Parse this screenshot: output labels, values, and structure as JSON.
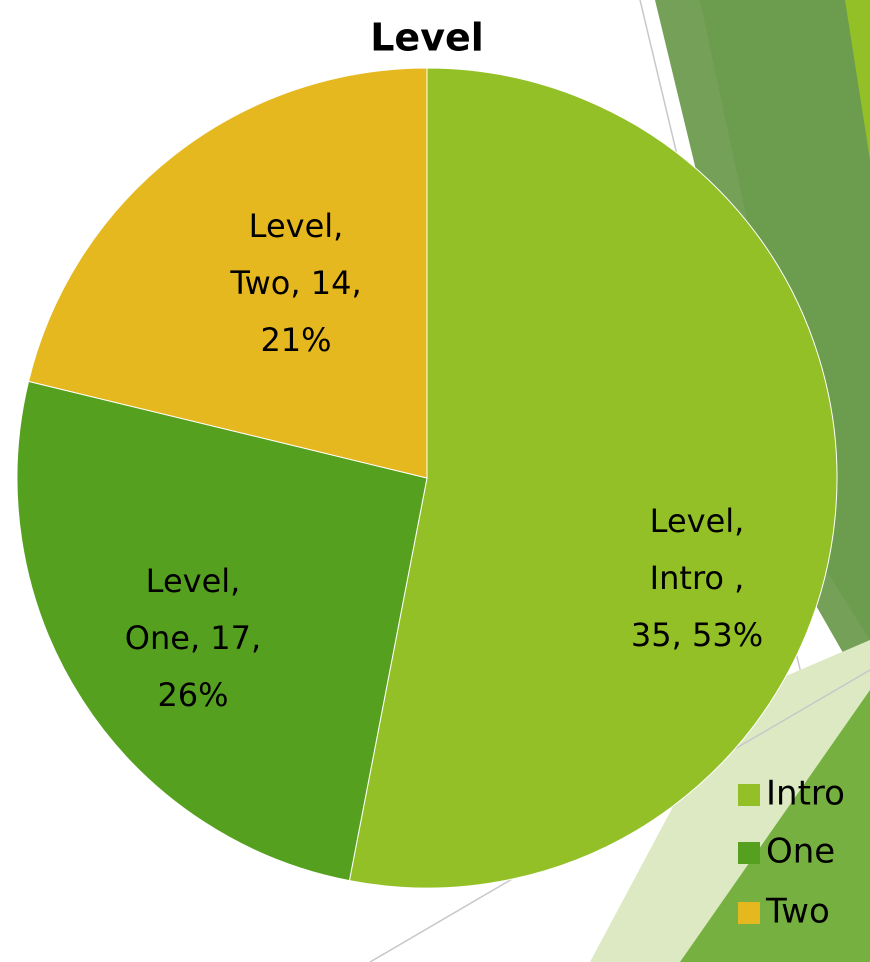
{
  "chart_data": {
    "type": "pie",
    "title": "Level",
    "categories": [
      "Intro",
      "One",
      "Two"
    ],
    "values": [
      35,
      17,
      14
    ],
    "value_labels": [
      [
        "Level,",
        "Intro  ,",
        "35, 53%"
      ],
      [
        "Level,",
        "One, 17,",
        "26%"
      ],
      [
        "Level,",
        "Two, 14,",
        "21%"
      ]
    ],
    "colors": [
      "#93c026",
      "#56a020",
      "#e6b81f"
    ],
    "legend": "right"
  }
}
